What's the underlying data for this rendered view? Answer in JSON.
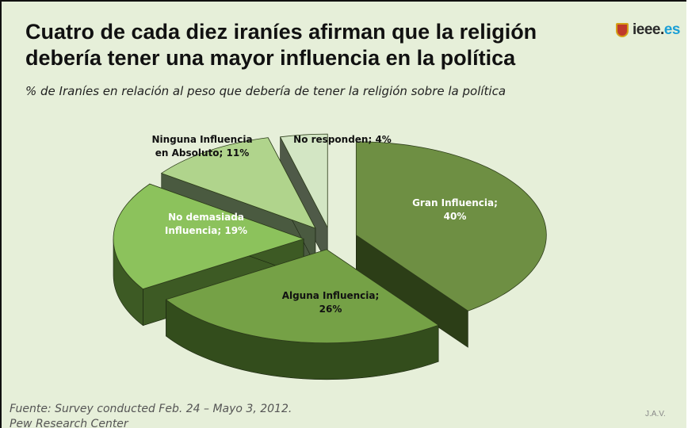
{
  "slide": {
    "title": "Cuatro de cada diez iraníes afirman que la religión debería tener una mayor influencia en la política",
    "subtitle": "% de Iraníes en relación al peso que debería de tener la religión sobre la política",
    "logo": {
      "main": "ieee.",
      "suffix": "es",
      "icon": "shield-icon"
    },
    "footer_line1": "Fuente: Survey conducted Feb. 24 – Mayo 3, 2012.",
    "footer_line2": "Pew Research Center",
    "initials": "J.A.V."
  },
  "chart_data": {
    "type": "pie",
    "style": "3d-exploded",
    "title": "",
    "slices": [
      {
        "label": "Gran Influencia",
        "value": 40,
        "color": "#6e8f43",
        "side_color": "#2c3e17",
        "label_color": "#ffffff",
        "label_lines": [
          "Gran Influencia;",
          "40%"
        ]
      },
      {
        "label": "Alguna Influencia",
        "value": 26,
        "color": "#75a146",
        "side_color": "#334d1c",
        "label_color": "#111111",
        "label_lines": [
          "Alguna Influencia;",
          "26%"
        ]
      },
      {
        "label": "No demasiada Influencia",
        "value": 19,
        "color": "#8cc25c",
        "side_color": "#3d5a24",
        "label_color": "#ffffff",
        "label_lines": [
          "No demasiada",
          "Influencia; 19%"
        ]
      },
      {
        "label": "Ninguna Influencia en Absoluto",
        "value": 11,
        "color": "#b0d48c",
        "side_color": "#4a5a40",
        "label_color": "#111111",
        "label_lines": [
          "Ninguna Influencia",
          "en Absoluto; 11%"
        ]
      },
      {
        "label": "No responden",
        "value": 4,
        "color": "#d3e6c4",
        "side_color": "#4f5a48",
        "label_color": "#111111",
        "label_lines": [
          "No responden; 4%"
        ]
      }
    ]
  }
}
